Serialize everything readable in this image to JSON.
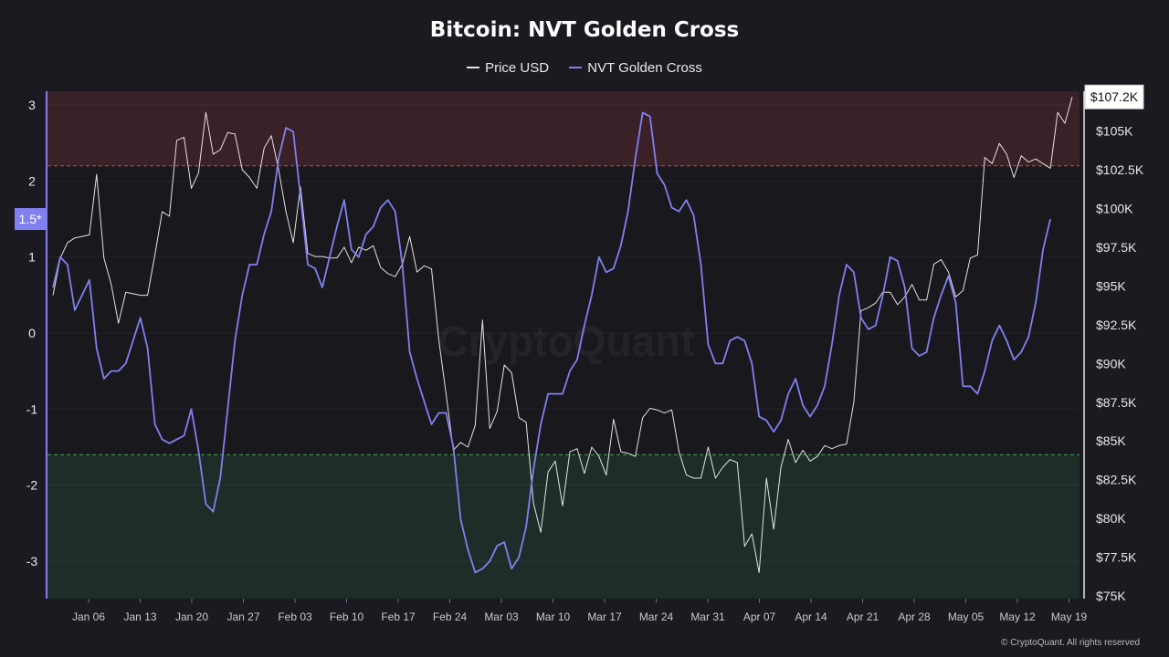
{
  "chart_data": {
    "type": "line",
    "title": "Bitcoin: NVT Golden Cross",
    "legend_position": "top-center",
    "x_tick_labels": [
      "Jan 06",
      "Jan 13",
      "Jan 20",
      "Jan 27",
      "Feb 03",
      "Feb 10",
      "Feb 17",
      "Feb 24",
      "Mar 03",
      "Mar 10",
      "Mar 17",
      "Mar 24",
      "Mar 31",
      "Apr 07",
      "Apr 14",
      "Apr 21",
      "Apr 28",
      "May 05",
      "May 12",
      "May 19"
    ],
    "left_axis": {
      "ticks": [
        "3",
        "2",
        "1",
        "0",
        "-1",
        "-2",
        "-3"
      ],
      "ylim": [
        -3.5,
        3.2
      ],
      "marker_label": "1.5*"
    },
    "right_axis": {
      "ticks": [
        "$105K",
        "$102.5K",
        "$100K",
        "$97.5K",
        "$95K",
        "$92.5K",
        "$90K",
        "$87.5K",
        "$85K",
        "$82.5K",
        "$80K",
        "$77.5K",
        "$75K"
      ],
      "last_value_label": "$107.2K"
    },
    "zones": {
      "upper_threshold": 2.2,
      "lower_threshold": -1.6,
      "upper_color": "#3a2127",
      "lower_color": "#1e2d27"
    },
    "x_start": "2025-01-01",
    "series": [
      {
        "name": "Price USD",
        "color": "#e4e4e4",
        "axis": "right",
        "values": [
          94.4,
          96.8,
          97.8,
          98.1,
          98.2,
          98.3,
          102.2,
          96.8,
          95.1,
          92.6,
          94.6,
          94.5,
          94.4,
          94.4,
          97.0,
          99.8,
          99.5,
          104.4,
          104.6,
          101.3,
          102.3,
          106.2,
          103.5,
          103.8,
          104.9,
          104.8,
          102.5,
          102.0,
          101.3,
          103.9,
          104.7,
          102.5,
          99.8,
          97.8,
          101.4,
          97.1,
          96.9,
          96.9,
          96.8,
          96.8,
          97.5,
          96.5,
          97.5,
          97.3,
          97.6,
          96.2,
          95.8,
          95.6,
          96.4,
          98.2,
          95.9,
          96.3,
          96.1,
          91.5,
          88.0,
          84.4,
          84.9,
          84.6,
          86.0,
          92.8,
          85.8,
          86.9,
          89.9,
          89.4,
          86.5,
          86.2,
          81.0,
          79.1,
          83.0,
          83.7,
          80.8,
          84.3,
          84.5,
          82.9,
          84.6,
          84.0,
          82.8,
          86.4,
          84.3,
          84.2,
          84.0,
          86.5,
          87.1,
          87.0,
          86.8,
          87.0,
          84.3,
          82.8,
          82.6,
          82.6,
          84.6,
          82.6,
          83.3,
          83.8,
          83.6,
          78.2,
          79.0,
          76.5,
          82.6,
          79.3,
          83.3,
          85.1,
          83.6,
          84.4,
          83.7,
          84.0,
          84.7,
          84.5,
          84.7,
          84.8,
          87.5,
          93.4,
          93.6,
          93.9,
          94.6,
          94.6,
          93.8,
          94.3,
          95.1,
          94.1,
          94.1,
          96.4,
          96.7,
          95.9,
          94.3,
          94.7,
          96.8,
          97.0,
          103.3,
          102.9,
          104.2,
          103.5,
          102.0,
          103.4,
          103.0,
          103.2,
          102.9,
          102.6,
          106.2,
          105.5,
          107.2
        ]
      },
      {
        "name": "NVT Golden Cross",
        "color": "#8280f0",
        "axis": "left",
        "values": [
          0.6,
          1.0,
          0.9,
          0.3,
          0.5,
          0.7,
          -0.2,
          -0.6,
          -0.5,
          -0.5,
          -0.4,
          -0.1,
          0.2,
          -0.2,
          -1.2,
          -1.4,
          -1.45,
          -1.4,
          -1.35,
          -1.0,
          -1.55,
          -2.25,
          -2.35,
          -1.9,
          -1.0,
          -0.1,
          0.5,
          0.9,
          0.9,
          1.3,
          1.6,
          2.3,
          2.7,
          2.65,
          1.8,
          0.9,
          0.85,
          0.6,
          1.0,
          1.4,
          1.75,
          1.1,
          1.0,
          1.3,
          1.4,
          1.65,
          1.75,
          1.6,
          0.9,
          -0.25,
          -0.6,
          -0.9,
          -1.2,
          -1.05,
          -1.05,
          -1.5,
          -2.45,
          -2.85,
          -3.15,
          -3.1,
          -3.0,
          -2.8,
          -2.75,
          -3.1,
          -2.95,
          -2.55,
          -1.8,
          -1.2,
          -0.8,
          -0.8,
          -0.8,
          -0.5,
          -0.35,
          0.1,
          0.5,
          1.0,
          0.8,
          0.85,
          1.15,
          1.6,
          2.3,
          2.9,
          2.85,
          2.1,
          1.95,
          1.65,
          1.6,
          1.75,
          1.55,
          0.9,
          -0.15,
          -0.4,
          -0.4,
          -0.1,
          -0.05,
          -0.1,
          -0.4,
          -1.1,
          -1.15,
          -1.3,
          -1.15,
          -0.8,
          -0.6,
          -0.95,
          -1.1,
          -0.95,
          -0.7,
          -0.15,
          0.5,
          0.9,
          0.8,
          0.2,
          0.05,
          0.1,
          0.5,
          1.0,
          0.95,
          0.6,
          -0.2,
          -0.3,
          -0.25,
          0.2,
          0.5,
          0.75,
          0.4,
          -0.7,
          -0.7,
          -0.8,
          -0.5,
          -0.1,
          0.1,
          -0.1,
          -0.35,
          -0.25,
          -0.05,
          0.4,
          1.1,
          1.5
        ]
      }
    ]
  },
  "footer": {
    "credit": "© CryptoQuant. All rights reserved"
  }
}
